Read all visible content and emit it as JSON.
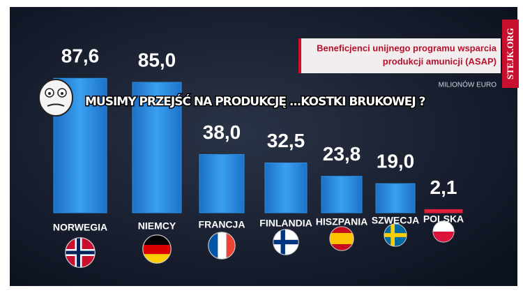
{
  "chart_data": {
    "type": "bar",
    "title": [
      "Beneficjenci unijnego programu wsparcia",
      "produkcji amunicji (ASAP)"
    ],
    "unit": "MILIONÓW EURO",
    "annotations": {
      "caption": "MUSIMY PRZEJŚĆ NA PRODUKCJĘ ...KOSTKI BRUKOWEJ ?",
      "watermark": "STEJK.ORG"
    },
    "categories": [
      "NORWEGIA",
      "NIEMCY",
      "FRANCJA",
      "FINLANDIA",
      "HISZPANIA",
      "SZWECJA",
      "POLSKA"
    ],
    "values": [
      87.6,
      85.0,
      38.0,
      32.5,
      23.8,
      19.0,
      2.1
    ],
    "value_labels": [
      "87,6",
      "85,0",
      "38,0",
      "32,5",
      "23,8",
      "19,0",
      "2,1"
    ],
    "colors": [
      "#2b8fe2",
      "#2b8fe2",
      "#2b8fe2",
      "#2b8fe2",
      "#2b8fe2",
      "#2b8fe2",
      "#e3203c"
    ]
  }
}
